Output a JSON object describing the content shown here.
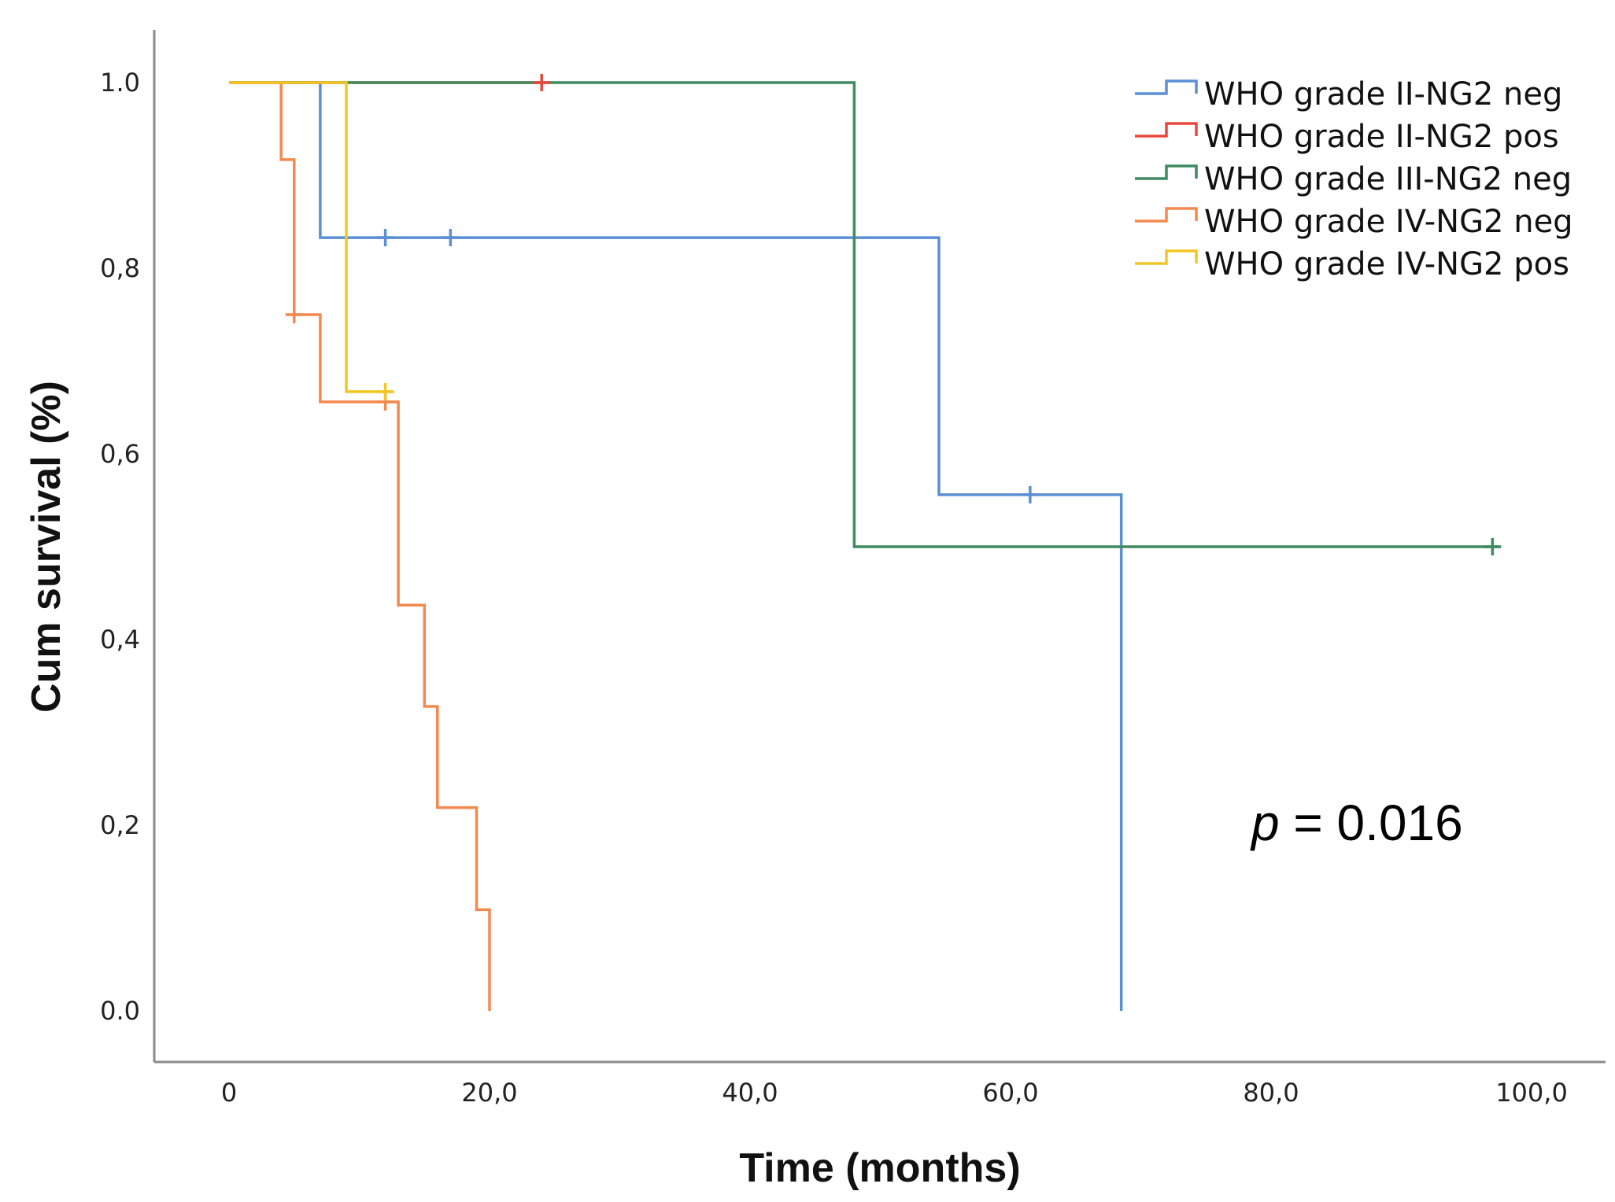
{
  "chart_data": {
    "type": "line",
    "title": "",
    "xlabel": "Time (months)",
    "ylabel": "Cum survival (%)",
    "xlim": [
      -5.5,
      106
    ],
    "ylim": [
      -0.05,
      1.05
    ],
    "x_ticks": [
      0,
      20,
      40,
      60,
      80,
      100
    ],
    "x_tick_labels": [
      "0",
      "20,0",
      "40,0",
      "60,0",
      "80,0",
      "100,0"
    ],
    "y_ticks": [
      0.0,
      0.2,
      0.4,
      0.6,
      0.8,
      1.0
    ],
    "y_tick_labels": [
      "0.0",
      "0,2",
      "0,4",
      "0,6",
      "0,8",
      "1.0"
    ],
    "grid": false,
    "legend_position": "top-right",
    "annotation": {
      "prefix": "p",
      "text": " = 0.016"
    },
    "series": [
      {
        "name": "WHO grade II-NG2 neg",
        "color": "#5b8fd4",
        "x": [
          0,
          7,
          7,
          54.5,
          54.5,
          68.5,
          68.5
        ],
        "y": [
          1.0,
          1.0,
          0.833,
          0.833,
          0.556,
          0.556,
          0.0
        ],
        "censored": [
          {
            "x": 12,
            "y": 0.833
          },
          {
            "x": 17,
            "y": 0.833
          },
          {
            "x": 61.5,
            "y": 0.556
          }
        ]
      },
      {
        "name": "WHO grade II-NG2 pos",
        "color": "#e8483b",
        "x": [
          0,
          24.5
        ],
        "y": [
          1.0,
          1.0
        ],
        "censored": [
          {
            "x": 24,
            "y": 1.0
          }
        ]
      },
      {
        "name": "WHO grade III-NG2 neg",
        "color": "#3f8a5e",
        "x": [
          0,
          48,
          48,
          97.5
        ],
        "y": [
          1.0,
          1.0,
          0.5,
          0.5
        ],
        "censored": [
          {
            "x": 97,
            "y": 0.5
          }
        ]
      },
      {
        "name": "WHO grade IV-NG2 neg",
        "color": "#f4894f",
        "x": [
          0,
          4,
          4,
          5,
          5,
          7,
          7,
          13,
          13,
          15,
          15,
          16,
          16,
          19,
          19,
          20,
          20
        ],
        "y": [
          1.0,
          1.0,
          0.917,
          0.917,
          0.75,
          0.75,
          0.656,
          0.656,
          0.437,
          0.437,
          0.328,
          0.328,
          0.219,
          0.219,
          0.109,
          0.109,
          0.0
        ],
        "censored": [
          {
            "x": 5,
            "y": 0.75
          },
          {
            "x": 12,
            "y": 0.656
          }
        ]
      },
      {
        "name": "WHO grade IV-NG2 pos",
        "color": "#f2c624",
        "x": [
          0,
          9,
          9,
          12.5
        ],
        "y": [
          1.0,
          1.0,
          0.667,
          0.667
        ],
        "censored": [
          {
            "x": 12,
            "y": 0.667
          }
        ]
      }
    ]
  }
}
